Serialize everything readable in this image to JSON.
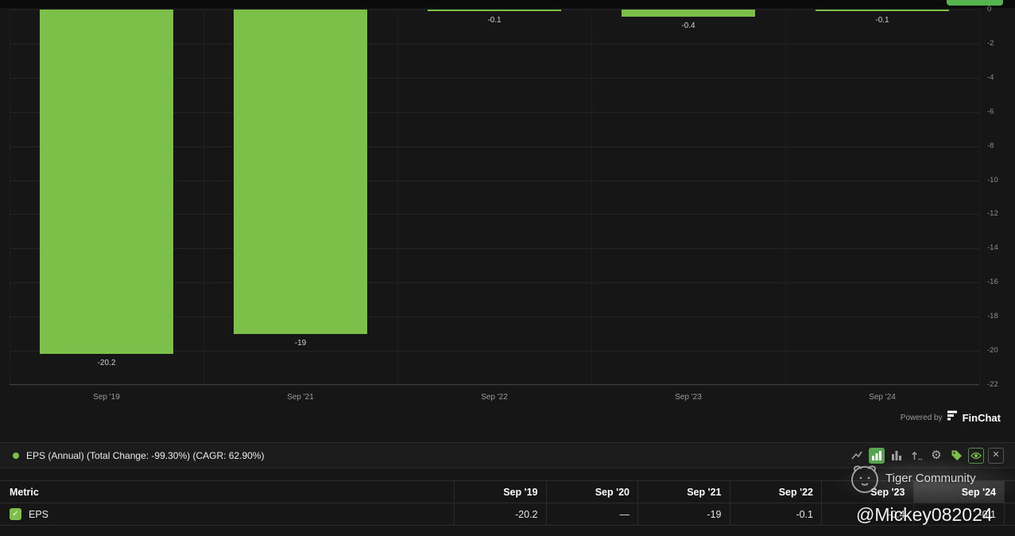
{
  "colors": {
    "accent_green": "#7CC04A",
    "background": "#161616"
  },
  "chart_data": {
    "type": "bar",
    "title": "",
    "xlabel": "",
    "ylabel": "",
    "categories": [
      "Sep '19",
      "Sep '21",
      "Sep '22",
      "Sep '23",
      "Sep '24"
    ],
    "series": [
      {
        "name": "EPS (Annual)",
        "values": [
          -20.2,
          -19,
          -0.1,
          -0.4,
          -0.1
        ]
      }
    ],
    "bar_labels": [
      "-20.2",
      "-19",
      "-0.1",
      "-0.4",
      "-0.1"
    ],
    "ylim": [
      -22,
      0
    ],
    "y_ticks": [
      0,
      -2,
      -4,
      -6,
      -8,
      -10,
      -12,
      -14,
      -16,
      -18,
      -20,
      -22
    ],
    "bar_color": "#7CC04A",
    "grid": true,
    "legend_position": "bottom"
  },
  "powered_by": {
    "prefix": "Powered by",
    "brand": "FinChat"
  },
  "legend": {
    "series_label": "EPS (Annual) (Total Change: -99.30%) (CAGR: 62.90%)",
    "dot_color": "#7CC04A"
  },
  "toolbar": {
    "icons": [
      "trend-line-icon",
      "bar-chart-icon",
      "column-chart-icon",
      "sort-order-icon",
      "settings-gear-icon",
      "tag-icon",
      "eye-icon",
      "close-icon"
    ],
    "active_icon": "bar-chart-icon"
  },
  "table": {
    "headers": [
      "Metric",
      "Sep '19",
      "Sep '20",
      "Sep '21",
      "Sep '22",
      "Sep '23",
      "Sep '24"
    ],
    "rows": [
      {
        "metric": "EPS",
        "checked": true,
        "values": [
          "-20.2",
          "—",
          "-19",
          "-0.1",
          "-0.4",
          "-0.1"
        ]
      }
    ]
  },
  "watermark": {
    "community": "Tiger Community",
    "handle": "@Mickey082024"
  }
}
